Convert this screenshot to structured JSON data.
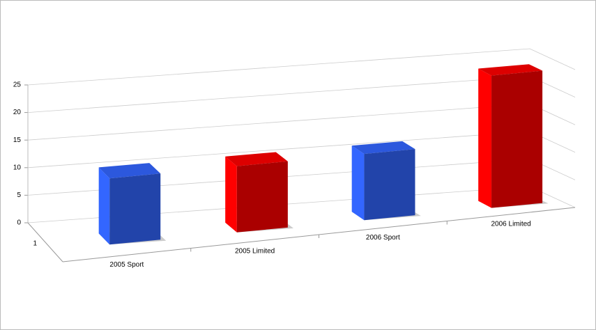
{
  "chart_data": {
    "type": "bar3d",
    "categories": [
      "2005 Sport",
      "2005 Limited",
      "2006 Sport",
      "2006 Limited"
    ],
    "depth_categories": [
      "1"
    ],
    "values": [
      12,
      12,
      12,
      24
    ],
    "colors": [
      "#2244aa",
      "#aa0000",
      "#2244aa",
      "#aa0000"
    ],
    "ylim": [
      0,
      25
    ],
    "yticks": [
      0,
      5,
      10,
      15,
      20,
      25
    ],
    "grid": true
  }
}
